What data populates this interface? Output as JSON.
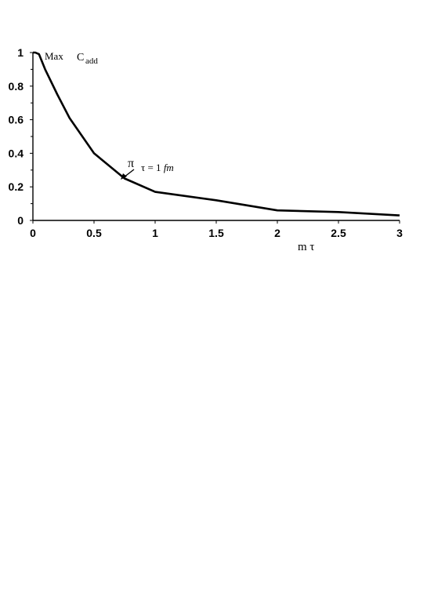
{
  "chart_data": {
    "type": "line",
    "title": "",
    "xlabel": "m τ",
    "ylabel": "",
    "xlim": [
      0,
      3
    ],
    "ylim": [
      0,
      1
    ],
    "x_ticks": [
      "0",
      "0.5",
      "1",
      "1.5",
      "2",
      "2.5",
      "3"
    ],
    "y_ticks": [
      "0",
      "0.2",
      "0.4",
      "0.6",
      "0.8",
      "1"
    ],
    "grid": false,
    "series": [
      {
        "x": [
          0,
          0.02,
          0.05,
          0.1,
          0.2,
          0.3,
          0.5,
          0.75,
          1.0,
          1.5,
          2.0,
          2.5,
          3.0
        ],
        "y": [
          1.0,
          1.0,
          0.99,
          0.9,
          0.75,
          0.61,
          0.4,
          0.25,
          0.17,
          0.12,
          0.06,
          0.05,
          0.03
        ]
      }
    ],
    "annotations": {
      "max_label": "Max",
      "c_symbol": "C",
      "c_subscript": "add",
      "pi_symbol": "π",
      "pi_point": "τ = 1 ",
      "pi_unit": "fm"
    }
  }
}
